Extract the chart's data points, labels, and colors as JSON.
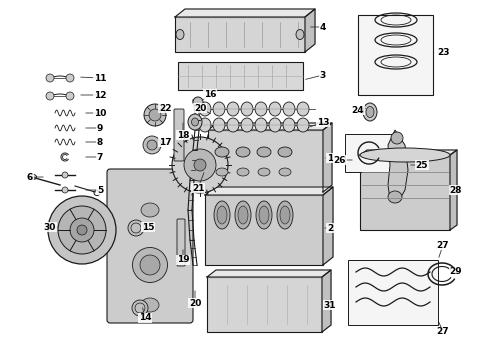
{
  "background_color": "#ffffff",
  "fig_width": 4.9,
  "fig_height": 3.6,
  "dpi": 100,
  "text_color": "#000000",
  "label_fontsize": 6.5,
  "line_color": "#1a1a1a",
  "line_color2": "#555555",
  "face_light": "#e8e8e8",
  "face_mid": "#d0d0d0",
  "face_dark": "#b8b8b8"
}
